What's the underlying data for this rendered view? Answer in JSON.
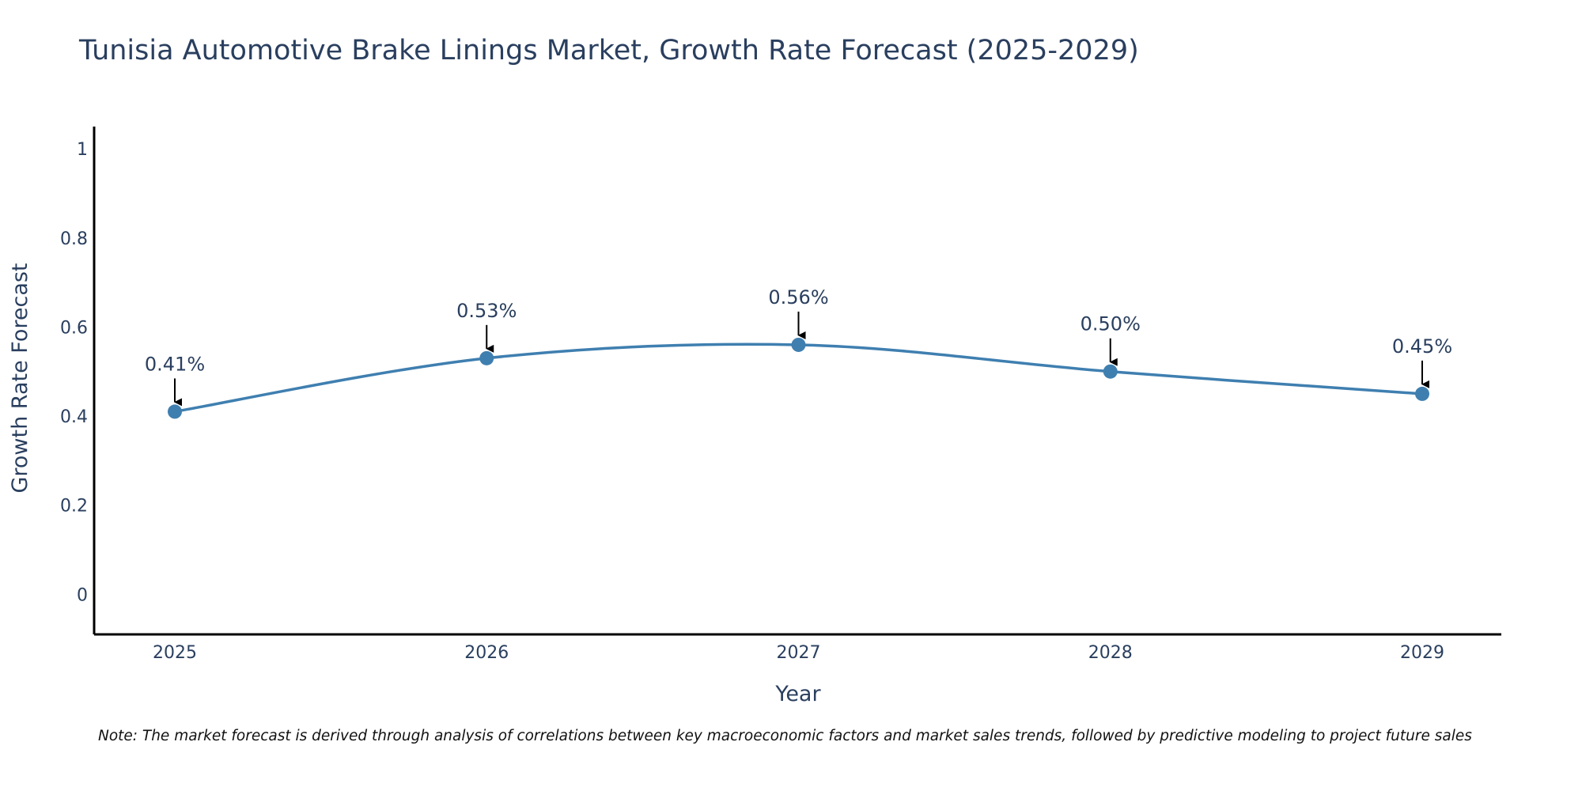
{
  "title": "Tunisia Automotive Brake Linings Market, Growth Rate Forecast (2025-2029)",
  "note": "Note: The market forecast is derived through analysis of correlations between key macroeconomic factors and market sales trends, followed by predictive modeling to project future sales",
  "colors": {
    "line": "#3f7fb0",
    "marker": "#3f7fb0",
    "text": "#2a3f5f",
    "axis": "#000000",
    "arrow": "#000000"
  },
  "chart_data": {
    "type": "line",
    "title": "Tunisia Automotive Brake Linings Market, Growth Rate Forecast (2025-2029)",
    "xlabel": "Year",
    "ylabel": "Growth Rate Forecast",
    "categories": [
      "2025",
      "2026",
      "2027",
      "2028",
      "2029"
    ],
    "values": [
      0.41,
      0.53,
      0.56,
      0.5,
      0.45
    ],
    "data_labels": [
      "0.41%",
      "0.53%",
      "0.56%",
      "0.50%",
      "0.45%"
    ],
    "ylim": [
      -0.09,
      1.05
    ],
    "yticks": [
      0,
      0.2,
      0.4,
      0.6,
      0.8,
      1
    ],
    "ytick_labels": [
      "0",
      "0.2",
      "0.4",
      "0.6",
      "0.8",
      "1"
    ],
    "line_shape": "spline",
    "grid": false,
    "legend": "none"
  }
}
